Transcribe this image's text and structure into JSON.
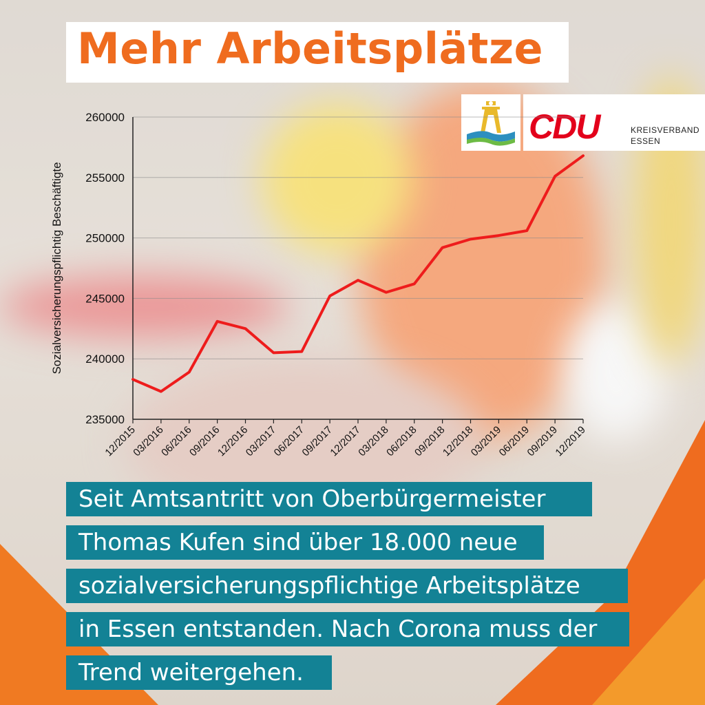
{
  "title": "Mehr Arbeitsplätze",
  "logo": {
    "cdu": "CDU",
    "line1": "KREISVERBAND",
    "line2": "ESSEN"
  },
  "colors": {
    "accent": "#ef6c1f",
    "line": "#ee1c1c",
    "text_box": "#138295",
    "cdu_red": "#e3001b"
  },
  "chart_data": {
    "type": "line",
    "ylabel": "Sozialversicherungspflichtig Beschäftigte",
    "xlabel": "",
    "ylim": [
      235000,
      260000
    ],
    "yticks": [
      235000,
      240000,
      245000,
      250000,
      255000,
      260000
    ],
    "grid": true,
    "categories": [
      "12/2015",
      "03/2016",
      "06/2016",
      "09/2016",
      "12/2016",
      "03/2017",
      "06/2017",
      "09/2017",
      "12/2017",
      "03/2018",
      "06/2018",
      "09/2018",
      "12/2018",
      "03/2019",
      "06/2019",
      "09/2019",
      "12/2019"
    ],
    "x_labels": [
      "12/2015",
      "03/2016",
      "06/2016",
      "09/2016",
      "12/2016",
      "03/2017",
      "06/2017",
      "09/2017",
      "12/2017",
      "03/2018",
      "06/2018",
      "09/2018",
      "12/2018",
      "03/2019",
      "06/2019",
      "09/2019",
      "12/2019"
    ],
    "series": [
      {
        "values": [
          238300,
          237300,
          238900,
          243100,
          242500,
          240500,
          240600,
          245200,
          246500,
          245500,
          246200,
          249200,
          249900,
          250200,
          250600,
          255100,
          256800
        ]
      }
    ]
  },
  "text_lines": [
    "Seit Amtsantritt von Oberbürgermeister",
    "Thomas Kufen sind über 18.000 neue",
    "sozialversicherungspflichtige Arbeitsplätze",
    "in Essen entstanden. Nach Corona muss der",
    "Trend weitergehen."
  ]
}
